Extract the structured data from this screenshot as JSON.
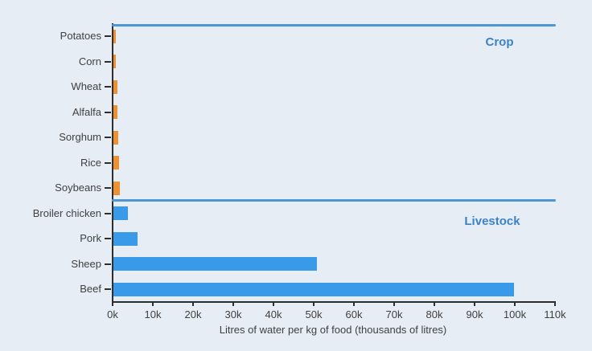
{
  "chart_data": {
    "type": "bar",
    "orientation": "horizontal",
    "title": "",
    "xlabel": "Litres of water per kg of food (thousands of litres)",
    "ylabel": "",
    "categories": [
      "Potatoes",
      "Corn",
      "Wheat",
      "Alfalfa",
      "Sorghum",
      "Rice",
      "Soybeans",
      "Broiler chicken",
      "Pork",
      "Sheep",
      "Beef"
    ],
    "values_thousands": [
      0.5,
      0.65,
      0.9,
      1.0,
      1.2,
      1.45,
      1.6,
      3.6,
      5.9,
      50.5,
      99.5
    ],
    "series": [
      {
        "name": "Crop",
        "categories": [
          "Potatoes",
          "Corn",
          "Wheat",
          "Alfalfa",
          "Sorghum",
          "Rice",
          "Soybeans"
        ],
        "values_thousands": [
          0.5,
          0.65,
          0.9,
          1.0,
          1.2,
          1.45,
          1.6
        ]
      },
      {
        "name": "Livestock",
        "categories": [
          "Broiler chicken",
          "Pork",
          "Sheep",
          "Beef"
        ],
        "values_thousands": [
          3.6,
          5.9,
          50.5,
          99.5
        ]
      }
    ],
    "groups": [
      {
        "label": "Crop",
        "first_category_index": 0,
        "last_category_index": 6
      },
      {
        "label": "Livestock",
        "first_category_index": 7,
        "last_category_index": 10
      }
    ],
    "x_tick_labels": [
      "0k",
      "10k",
      "20k",
      "30k",
      "40k",
      "50k",
      "60k",
      "70k",
      "80k",
      "90k",
      "100k",
      "110k"
    ],
    "xlim_thousands": [
      0,
      110
    ],
    "grid": false,
    "legend_position": "none"
  },
  "colors": {
    "background": "#e7edf5",
    "crop_bar": "#ee9130",
    "livestock_bar": "#389ae8",
    "group_line": "#4e97d6",
    "group_label_text": "#3c82c8",
    "axis": "#2e2e2e",
    "tick_label_text": "#3f3f3f"
  }
}
